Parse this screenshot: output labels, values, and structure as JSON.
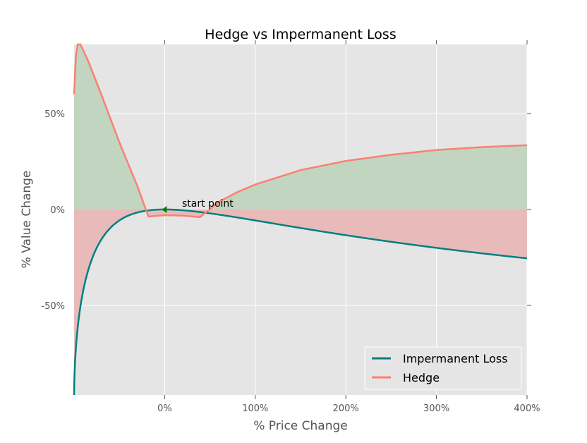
{
  "chart_data": {
    "type": "line",
    "title": "Hedge vs Impermanent Loss",
    "xlabel": "% Price Change",
    "ylabel": "% Value Change",
    "xlim": [
      -100,
      400
    ],
    "ylim": [
      -96.7,
      86
    ],
    "grid": true,
    "x_ticks": [
      {
        "v": 0,
        "label": "0%"
      },
      {
        "v": 100,
        "label": "100%"
      },
      {
        "v": 200,
        "label": "200%"
      },
      {
        "v": 300,
        "label": "300%"
      },
      {
        "v": 400,
        "label": "400%"
      }
    ],
    "y_ticks": [
      {
        "v": 50,
        "label": "50%"
      },
      {
        "v": 0,
        "label": "0%"
      },
      {
        "v": -50,
        "label": "-50%"
      }
    ],
    "legend_position": "bottom-right",
    "series": [
      {
        "name": "Impermanent Loss",
        "color": "#008080",
        "formula": "2*sqrt(1+x)/(2+x)-1"
      },
      {
        "name": "Hedge",
        "color": "#fa8072",
        "x": [
          -100,
          -98,
          -96,
          -93,
          -85,
          -70,
          -50,
          -30,
          -18,
          0,
          20,
          39,
          60,
          80,
          100,
          150,
          200,
          250,
          300,
          350,
          400
        ],
        "y": [
          60,
          80,
          86,
          86,
          78,
          60,
          35,
          12,
          -3.7,
          -3,
          -3.2,
          -4,
          4,
          9,
          13,
          20.5,
          25.3,
          28.5,
          31,
          32.5,
          33.5
        ]
      }
    ],
    "fills": {
      "positive": "#c1d5c1",
      "negative": "#e8baba"
    },
    "annotation": {
      "text": "start point",
      "x": 0,
      "y": 0,
      "marker_color": "#008000"
    }
  }
}
